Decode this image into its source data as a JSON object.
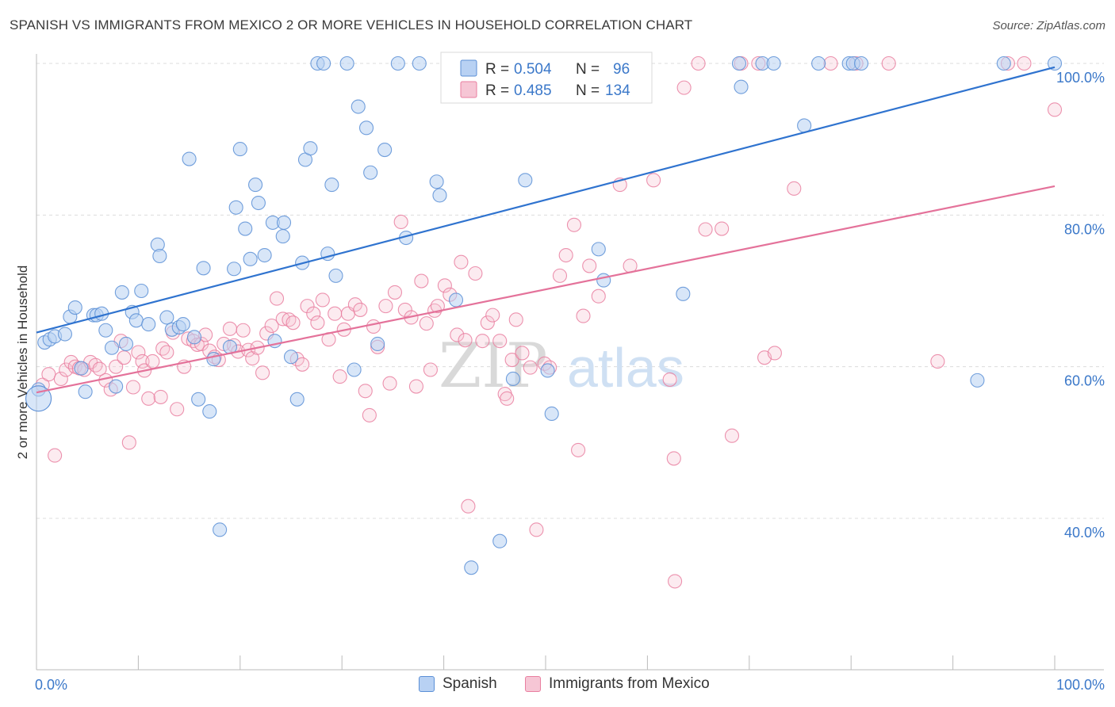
{
  "title": "SPANISH VS IMMIGRANTS FROM MEXICO 2 OR MORE VEHICLES IN HOUSEHOLD CORRELATION CHART",
  "source": "Source: ZipAtlas.com",
  "watermark": {
    "zip": "ZIP",
    "atlas": "atlas"
  },
  "colors": {
    "spanish": "#5b8fd6",
    "spanish_fill": "#b8d1f3",
    "mexico": "#e97fa0",
    "mexico_fill": "#f6c6d5",
    "blue_line": "#2f73cf",
    "pink_line": "#e4729a",
    "label": "#3b78c9"
  },
  "legend_box": {
    "rows": [
      {
        "r_label": "R =",
        "r_value": "0.504",
        "n_label": "N =",
        "n_value": "96"
      },
      {
        "r_label": "R =",
        "r_value": "0.485",
        "n_label": "N =",
        "n_value": "134"
      }
    ]
  },
  "bottom_legend": {
    "spanish": "Spanish",
    "mexico": "Immigrants from Mexico"
  },
  "chart_data": {
    "type": "scatter",
    "title": "SPANISH VS IMMIGRANTS FROM MEXICO 2 OR MORE VEHICLES IN HOUSEHOLD CORRELATION CHART",
    "xlabel": "",
    "ylabel": "2 or more Vehicles in Household",
    "xlim": [
      0,
      100
    ],
    "ylim": [
      20,
      103
    ],
    "x_tick_labels": [
      "0.0%",
      "100.0%"
    ],
    "y_ticks": [
      40,
      60,
      80,
      100
    ],
    "y_tick_labels": [
      "40.0%",
      "60.0%",
      "80.0%",
      "100.0%"
    ],
    "grid": true,
    "legend_placement": "top-center",
    "series": [
      {
        "name": "Spanish",
        "R": 0.504,
        "N": 96,
        "trend": [
          [
            0,
            64.5
          ],
          [
            100,
            99.5
          ]
        ],
        "points": [
          [
            0.2,
            57
          ],
          [
            0.8,
            63.2
          ],
          [
            1.3,
            63.6
          ],
          [
            1.8,
            64
          ],
          [
            2.8,
            64.3
          ],
          [
            3.3,
            66.6
          ],
          [
            3.8,
            67.8
          ],
          [
            4.4,
            59.8
          ],
          [
            4.8,
            56.7
          ],
          [
            5.6,
            66.8
          ],
          [
            5.9,
            66.8
          ],
          [
            6.4,
            67
          ],
          [
            6.8,
            64.8
          ],
          [
            7.4,
            62.5
          ],
          [
            7.8,
            57.4
          ],
          [
            8.4,
            69.8
          ],
          [
            8.8,
            63
          ],
          [
            9.4,
            67.2
          ],
          [
            9.8,
            66.1
          ],
          [
            10.3,
            70
          ],
          [
            11,
            65.6
          ],
          [
            11.9,
            76.1
          ],
          [
            12.1,
            74.6
          ],
          [
            12.8,
            66.5
          ],
          [
            13.3,
            64.9
          ],
          [
            14,
            65.2
          ],
          [
            14.4,
            65.6
          ],
          [
            15,
            87.4
          ],
          [
            15.5,
            63.9
          ],
          [
            15.9,
            55.7
          ],
          [
            16.4,
            73
          ],
          [
            17,
            54.1
          ],
          [
            17.4,
            61
          ],
          [
            18,
            38.5
          ],
          [
            19,
            62.6
          ],
          [
            19.4,
            72.9
          ],
          [
            19.6,
            81
          ],
          [
            20,
            88.7
          ],
          [
            20.5,
            78.2
          ],
          [
            21,
            74.2
          ],
          [
            21.5,
            84
          ],
          [
            21.8,
            81.6
          ],
          [
            22.4,
            74.7
          ],
          [
            23.2,
            79
          ],
          [
            23.4,
            63.4
          ],
          [
            24.2,
            77.2
          ],
          [
            24.3,
            79
          ],
          [
            25,
            61.3
          ],
          [
            25.6,
            55.7
          ],
          [
            26.1,
            73.7
          ],
          [
            26.4,
            87.3
          ],
          [
            26.9,
            88.8
          ],
          [
            27.6,
            100
          ],
          [
            28.2,
            100
          ],
          [
            28.6,
            74.9
          ],
          [
            29,
            84
          ],
          [
            29.4,
            72
          ],
          [
            30.5,
            100
          ],
          [
            31.2,
            59.6
          ],
          [
            31.6,
            94.3
          ],
          [
            32.4,
            91.5
          ],
          [
            32.8,
            85.6
          ],
          [
            33.5,
            63
          ],
          [
            34.2,
            88.6
          ],
          [
            35.5,
            100
          ],
          [
            36.3,
            77
          ],
          [
            37.6,
            100
          ],
          [
            39.3,
            84.4
          ],
          [
            39.6,
            82.6
          ],
          [
            41.2,
            68.8
          ],
          [
            42.7,
            33.5
          ],
          [
            45,
            96
          ],
          [
            45.5,
            37
          ],
          [
            46.8,
            58.4
          ],
          [
            48,
            84.6
          ],
          [
            50.2,
            59.5
          ],
          [
            50.6,
            53.8
          ],
          [
            51.2,
            100
          ],
          [
            55.2,
            75.5
          ],
          [
            55.7,
            71.4
          ],
          [
            63.5,
            69.6
          ],
          [
            69,
            100
          ],
          [
            69.2,
            96.9
          ],
          [
            71.3,
            100
          ],
          [
            72.4,
            100
          ],
          [
            75.4,
            91.8
          ],
          [
            76.8,
            100
          ],
          [
            79.8,
            100
          ],
          [
            80.2,
            100
          ],
          [
            81,
            100
          ],
          [
            92.4,
            58.2
          ],
          [
            95,
            100
          ],
          [
            100,
            100
          ]
        ]
      },
      {
        "name": "Immigrants from Mexico",
        "R": 0.485,
        "N": 134,
        "trend": [
          [
            0,
            56.6
          ],
          [
            100,
            83.8
          ]
        ],
        "points": [
          [
            0.6,
            57.6
          ],
          [
            1.2,
            59
          ],
          [
            1.8,
            48.3
          ],
          [
            2.4,
            58.4
          ],
          [
            2.9,
            59.6
          ],
          [
            3.4,
            60.6
          ],
          [
            3.8,
            60
          ],
          [
            4.2,
            59.8
          ],
          [
            4.7,
            59.6
          ],
          [
            5.3,
            60.6
          ],
          [
            5.8,
            60.2
          ],
          [
            6.2,
            59.7
          ],
          [
            6.8,
            58.2
          ],
          [
            7.3,
            57
          ],
          [
            7.8,
            60
          ],
          [
            8.3,
            63.4
          ],
          [
            8.6,
            61.2
          ],
          [
            9.1,
            50
          ],
          [
            9.5,
            57.3
          ],
          [
            10,
            61.9
          ],
          [
            10.4,
            60.7
          ],
          [
            10.6,
            59.5
          ],
          [
            11,
            55.8
          ],
          [
            11.4,
            60.7
          ],
          [
            12.2,
            56
          ],
          [
            12.4,
            62.4
          ],
          [
            12.8,
            61.9
          ],
          [
            13.4,
            64.5
          ],
          [
            13.8,
            54.4
          ],
          [
            14.5,
            60
          ],
          [
            14.9,
            63.7
          ],
          [
            15.4,
            63.4
          ],
          [
            15.8,
            62.9
          ],
          [
            16.2,
            63
          ],
          [
            16.6,
            64.2
          ],
          [
            17,
            62.1
          ],
          [
            17.5,
            61.3
          ],
          [
            17.9,
            60.9
          ],
          [
            18.4,
            63
          ],
          [
            19,
            65
          ],
          [
            19.4,
            62.8
          ],
          [
            19.8,
            62
          ],
          [
            20.3,
            64.8
          ],
          [
            20.8,
            62.2
          ],
          [
            21.2,
            61.1
          ],
          [
            21.7,
            62.5
          ],
          [
            22.2,
            59.2
          ],
          [
            22.6,
            64.4
          ],
          [
            23.1,
            65.4
          ],
          [
            23.6,
            69
          ],
          [
            24.2,
            66.3
          ],
          [
            24.8,
            66.2
          ],
          [
            25.2,
            65.8
          ],
          [
            25.6,
            61
          ],
          [
            26.1,
            60.3
          ],
          [
            26.6,
            68
          ],
          [
            27.2,
            67
          ],
          [
            27.6,
            65.8
          ],
          [
            28.1,
            68.8
          ],
          [
            28.7,
            63.6
          ],
          [
            29.3,
            67
          ],
          [
            29.8,
            58.7
          ],
          [
            30.2,
            64.9
          ],
          [
            30.6,
            67
          ],
          [
            31.3,
            68.2
          ],
          [
            31.8,
            67.5
          ],
          [
            32.3,
            56.8
          ],
          [
            32.7,
            53.6
          ],
          [
            33.1,
            65.3
          ],
          [
            33.5,
            62.6
          ],
          [
            34.3,
            68
          ],
          [
            34.7,
            57.8
          ],
          [
            35.2,
            69.8
          ],
          [
            35.8,
            79.1
          ],
          [
            36.2,
            67.5
          ],
          [
            36.8,
            66.5
          ],
          [
            37.3,
            57.4
          ],
          [
            37.8,
            71.3
          ],
          [
            38.3,
            65.7
          ],
          [
            38.7,
            59.6
          ],
          [
            39.1,
            67.4
          ],
          [
            39.4,
            68
          ],
          [
            40.1,
            70.7
          ],
          [
            40.6,
            69.5
          ],
          [
            41.3,
            64.2
          ],
          [
            41.7,
            73.8
          ],
          [
            42.1,
            63.5
          ],
          [
            42.4,
            41.6
          ],
          [
            43.1,
            72.3
          ],
          [
            43.8,
            63.4
          ],
          [
            44.3,
            65.8
          ],
          [
            44.8,
            66.8
          ],
          [
            45.5,
            63.4
          ],
          [
            46,
            56.4
          ],
          [
            46.2,
            55.8
          ],
          [
            46.7,
            60.9
          ],
          [
            47.1,
            66.2
          ],
          [
            47.7,
            61.8
          ],
          [
            48.5,
            59.9
          ],
          [
            49.1,
            38.5
          ],
          [
            49.9,
            60.4
          ],
          [
            50.4,
            59.9
          ],
          [
            51.4,
            72
          ],
          [
            52,
            74.7
          ],
          [
            52.8,
            78.7
          ],
          [
            53.2,
            49
          ],
          [
            53.7,
            66.7
          ],
          [
            54.3,
            73.3
          ],
          [
            55.2,
            69.3
          ],
          [
            57.3,
            84
          ],
          [
            58.3,
            73.3
          ],
          [
            60.6,
            84.6
          ],
          [
            62.2,
            58.3
          ],
          [
            62.6,
            47.9
          ],
          [
            62.7,
            31.7
          ],
          [
            63.6,
            96.8
          ],
          [
            65,
            100
          ],
          [
            65.7,
            78.1
          ],
          [
            67.3,
            78.2
          ],
          [
            68.3,
            50.9
          ],
          [
            69.2,
            100
          ],
          [
            70.9,
            100
          ],
          [
            71.5,
            61.2
          ],
          [
            72.5,
            61.8
          ],
          [
            74.4,
            83.5
          ],
          [
            78,
            100
          ],
          [
            80.5,
            100
          ],
          [
            83.7,
            100
          ],
          [
            88.5,
            60.7
          ],
          [
            95.4,
            100
          ],
          [
            97,
            100
          ],
          [
            100,
            93.9
          ]
        ]
      }
    ]
  }
}
